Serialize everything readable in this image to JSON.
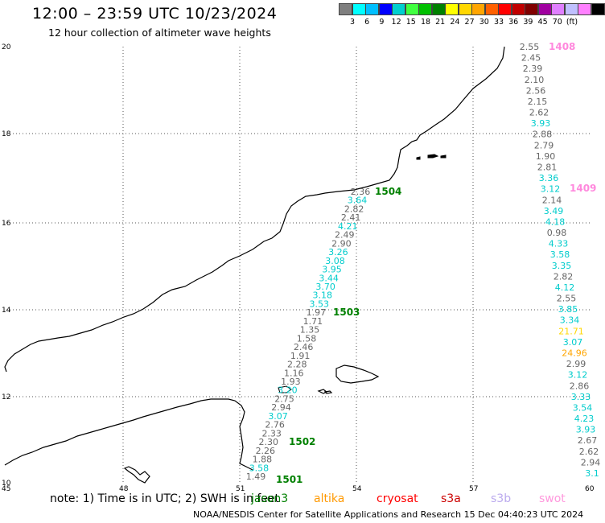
{
  "title": "12:00 – 23:59 UTC 10/23/2024",
  "subtitle": "12 hour collection of altimeter wave heights",
  "scale": {
    "colors": [
      "#7f7f7f",
      "#00ffff",
      "#00bfff",
      "#0000ff",
      "#00cfcf",
      "#40ff40",
      "#00c000",
      "#008000",
      "#ffff00",
      "#ffd700",
      "#ffa500",
      "#ff6000",
      "#ff0000",
      "#c00000",
      "#800000",
      "#a000a0",
      "#e080ff",
      "#c0c0ff",
      "#ff80ff",
      "#000000"
    ],
    "labels": [
      "3",
      "6",
      "9",
      "12",
      "15",
      "18",
      "21",
      "24",
      "27",
      "30",
      "33",
      "36",
      "39",
      "45",
      "70",
      "(ft)"
    ]
  },
  "axes": {
    "x_ticks": [
      "45",
      "48",
      "51",
      "54",
      "57",
      "60"
    ],
    "y_ticks": [
      "20",
      "18",
      "16",
      "14",
      "12",
      "10"
    ]
  },
  "passes": [
    {
      "id": "1408",
      "color": "#ff88dd"
    },
    {
      "id": "1409",
      "color": "#ff88dd"
    },
    {
      "id": "1504",
      "color": "#008000"
    },
    {
      "id": "1503",
      "color": "#008000"
    },
    {
      "id": "1502",
      "color": "#008000"
    },
    {
      "id": "1501",
      "color": "#008000"
    }
  ],
  "tracks": {
    "left": [
      {
        "v": "2.36",
        "c": "#666666"
      },
      {
        "v": "3.64",
        "c": "#00cccc"
      },
      {
        "v": "2.82",
        "c": "#666666"
      },
      {
        "v": "2.41",
        "c": "#666666"
      },
      {
        "v": "4.21",
        "c": "#00cccc"
      },
      {
        "v": "2.49",
        "c": "#666666"
      },
      {
        "v": "2.90",
        "c": "#666666"
      },
      {
        "v": "3.26",
        "c": "#00cccc"
      },
      {
        "v": "3.08",
        "c": "#00cccc"
      },
      {
        "v": "3.95",
        "c": "#00cccc"
      },
      {
        "v": "3.44",
        "c": "#00cccc"
      },
      {
        "v": "3.70",
        "c": "#00cccc"
      },
      {
        "v": "3.18",
        "c": "#00cccc"
      },
      {
        "v": "3.53",
        "c": "#00cccc"
      },
      {
        "v": "1.97",
        "c": "#666666"
      },
      {
        "v": "1.71",
        "c": "#666666"
      },
      {
        "v": "1.35",
        "c": "#666666"
      },
      {
        "v": "1.58",
        "c": "#666666"
      },
      {
        "v": "2.46",
        "c": "#666666"
      },
      {
        "v": "1.91",
        "c": "#666666"
      },
      {
        "v": "2.28",
        "c": "#666666"
      },
      {
        "v": "1.16",
        "c": "#666666"
      },
      {
        "v": "1.93",
        "c": "#666666"
      },
      {
        "v": "3.20",
        "c": "#00cccc"
      },
      {
        "v": "2.75",
        "c": "#666666"
      },
      {
        "v": "2.94",
        "c": "#666666"
      },
      {
        "v": "3.07",
        "c": "#00cccc"
      },
      {
        "v": "2.76",
        "c": "#666666"
      },
      {
        "v": "2.33",
        "c": "#666666"
      },
      {
        "v": "2.30",
        "c": "#666666"
      },
      {
        "v": "2.26",
        "c": "#666666"
      },
      {
        "v": "1.88",
        "c": "#666666"
      },
      {
        "v": "3.58",
        "c": "#00cccc"
      },
      {
        "v": "1.49",
        "c": "#666666"
      }
    ],
    "right": [
      {
        "v": "2.55",
        "c": "#666666"
      },
      {
        "v": "2.45",
        "c": "#666666"
      },
      {
        "v": "2.39",
        "c": "#666666"
      },
      {
        "v": "2.10",
        "c": "#666666"
      },
      {
        "v": "2.56",
        "c": "#666666"
      },
      {
        "v": "2.15",
        "c": "#666666"
      },
      {
        "v": "2.62",
        "c": "#666666"
      },
      {
        "v": "3.93",
        "c": "#00cccc"
      },
      {
        "v": "2.88",
        "c": "#666666"
      },
      {
        "v": "2.79",
        "c": "#666666"
      },
      {
        "v": "1.90",
        "c": "#666666"
      },
      {
        "v": "2.81",
        "c": "#666666"
      },
      {
        "v": "3.36",
        "c": "#00cccc"
      },
      {
        "v": "3.12",
        "c": "#00cccc"
      },
      {
        "v": "2.14",
        "c": "#666666"
      },
      {
        "v": "3.49",
        "c": "#00cccc"
      },
      {
        "v": "4.18",
        "c": "#00cccc"
      },
      {
        "v": "0.98",
        "c": "#666666"
      },
      {
        "v": "4.33",
        "c": "#00cccc"
      },
      {
        "v": "3.58",
        "c": "#00cccc"
      },
      {
        "v": "3.35",
        "c": "#00cccc"
      },
      {
        "v": "2.82",
        "c": "#666666"
      },
      {
        "v": "4.12",
        "c": "#00cccc"
      },
      {
        "v": "2.55",
        "c": "#666666"
      },
      {
        "v": "3.85",
        "c": "#00cccc"
      },
      {
        "v": "3.34",
        "c": "#00cccc"
      },
      {
        "v": "21.71",
        "c": "#ffd700"
      },
      {
        "v": "3.07",
        "c": "#00cccc"
      },
      {
        "v": "24.96",
        "c": "#ffa500"
      },
      {
        "v": "2.99",
        "c": "#666666"
      },
      {
        "v": "3.12",
        "c": "#00cccc"
      },
      {
        "v": "2.86",
        "c": "#666666"
      },
      {
        "v": "3.33",
        "c": "#00cccc"
      },
      {
        "v": "3.54",
        "c": "#00cccc"
      },
      {
        "v": "4.23",
        "c": "#00cccc"
      },
      {
        "v": "3.93",
        "c": "#00cccc"
      },
      {
        "v": "2.67",
        "c": "#666666"
      },
      {
        "v": "2.62",
        "c": "#666666"
      },
      {
        "v": "2.94",
        "c": "#666666"
      },
      {
        "v": "3.1",
        "c": "#00cccc"
      }
    ]
  },
  "note": "note: 1) Time is in UTC; 2) SWH is in feet",
  "satellites": [
    {
      "name": "jason3",
      "color": "#008000"
    },
    {
      "name": "altika",
      "color": "#ff9900"
    },
    {
      "name": "cryosat",
      "color": "#ff0000"
    },
    {
      "name": "s3a",
      "color": "#cc0000"
    },
    {
      "name": "s3b",
      "color": "#bbaaee"
    },
    {
      "name": "swot",
      "color": "#ff99dd"
    }
  ],
  "credit": "NOAA/NESDIS Center for Satellite Applications and Research    15 Dec 04:40:23 UTC 2024"
}
